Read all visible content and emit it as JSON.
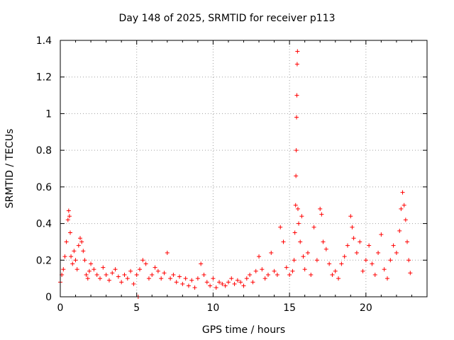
{
  "chart_data": {
    "type": "scatter",
    "title": "Day 148 of 2025, SRMTID for receiver p113",
    "xlabel": "GPS time / hours",
    "ylabel": "SRMTID / TECUs",
    "xlim": [
      0,
      24
    ],
    "ylim": [
      0,
      1.4
    ],
    "xticks": [
      0,
      5,
      10,
      15,
      20
    ],
    "yticks": [
      0,
      0.2,
      0.4,
      0.6,
      0.8,
      1,
      1.2,
      1.4
    ],
    "grid": true,
    "marker": "+",
    "color": "#ff0000",
    "series": [
      {
        "name": "SRMTID",
        "x": [
          0.0,
          0.1,
          0.2,
          0.3,
          0.4,
          0.5,
          0.55,
          0.6,
          0.65,
          0.7,
          0.8,
          0.9,
          1.0,
          1.1,
          1.2,
          1.3,
          1.4,
          1.5,
          1.6,
          1.7,
          1.8,
          1.9,
          2.0,
          2.2,
          2.4,
          2.6,
          2.8,
          3.0,
          3.2,
          3.4,
          3.6,
          3.8,
          4.0,
          4.2,
          4.4,
          4.6,
          4.8,
          5.0,
          5.1,
          5.2,
          5.4,
          5.6,
          5.8,
          6.0,
          6.2,
          6.4,
          6.6,
          6.8,
          7.0,
          7.2,
          7.4,
          7.6,
          7.8,
          8.0,
          8.2,
          8.4,
          8.6,
          8.8,
          9.0,
          9.2,
          9.4,
          9.6,
          9.8,
          10.0,
          10.2,
          10.4,
          10.6,
          10.8,
          11.0,
          11.2,
          11.4,
          11.6,
          11.8,
          12.0,
          12.2,
          12.4,
          12.6,
          12.8,
          13.0,
          13.2,
          13.4,
          13.6,
          13.8,
          14.0,
          14.2,
          14.4,
          14.6,
          14.8,
          15.0,
          15.2,
          15.3,
          15.35,
          15.4,
          15.42,
          15.44,
          15.46,
          15.48,
          15.5,
          15.52,
          15.55,
          15.6,
          15.7,
          15.8,
          15.9,
          16.0,
          16.2,
          16.4,
          16.6,
          16.8,
          17.0,
          17.1,
          17.2,
          17.4,
          17.6,
          17.8,
          18.0,
          18.2,
          18.4,
          18.6,
          18.8,
          19.0,
          19.1,
          19.2,
          19.4,
          19.6,
          19.8,
          20.0,
          20.2,
          20.4,
          20.6,
          20.8,
          21.0,
          21.2,
          21.4,
          21.6,
          21.8,
          22.0,
          22.2,
          22.3,
          22.4,
          22.5,
          22.6,
          22.7,
          22.8,
          22.9
        ],
        "y": [
          0.08,
          0.12,
          0.15,
          0.22,
          0.3,
          0.42,
          0.47,
          0.44,
          0.35,
          0.22,
          0.18,
          0.25,
          0.2,
          0.15,
          0.28,
          0.32,
          0.3,
          0.25,
          0.2,
          0.12,
          0.1,
          0.14,
          0.18,
          0.15,
          0.12,
          0.1,
          0.16,
          0.12,
          0.09,
          0.13,
          0.15,
          0.11,
          0.08,
          0.12,
          0.1,
          0.14,
          0.07,
          0.12,
          0.0,
          0.15,
          0.2,
          0.18,
          0.1,
          0.12,
          0.16,
          0.14,
          0.1,
          0.13,
          0.24,
          0.1,
          0.12,
          0.08,
          0.11,
          0.07,
          0.1,
          0.06,
          0.09,
          0.05,
          0.1,
          0.18,
          0.12,
          0.08,
          0.06,
          0.1,
          0.05,
          0.08,
          0.07,
          0.06,
          0.08,
          0.1,
          0.07,
          0.09,
          0.08,
          0.06,
          0.1,
          0.12,
          0.08,
          0.14,
          0.22,
          0.15,
          0.1,
          0.12,
          0.24,
          0.14,
          0.12,
          0.38,
          0.3,
          0.16,
          0.12,
          0.14,
          0.2,
          0.35,
          0.5,
          0.66,
          0.8,
          0.98,
          1.1,
          1.27,
          1.34,
          0.48,
          0.4,
          0.3,
          0.44,
          0.22,
          0.15,
          0.24,
          0.12,
          0.38,
          0.2,
          0.48,
          0.45,
          0.3,
          0.26,
          0.18,
          0.12,
          0.14,
          0.1,
          0.18,
          0.22,
          0.28,
          0.44,
          0.38,
          0.32,
          0.24,
          0.3,
          0.14,
          0.2,
          0.28,
          0.18,
          0.12,
          0.24,
          0.34,
          0.15,
          0.1,
          0.2,
          0.28,
          0.24,
          0.36,
          0.48,
          0.57,
          0.5,
          0.42,
          0.3,
          0.2,
          0.13
        ]
      }
    ]
  }
}
